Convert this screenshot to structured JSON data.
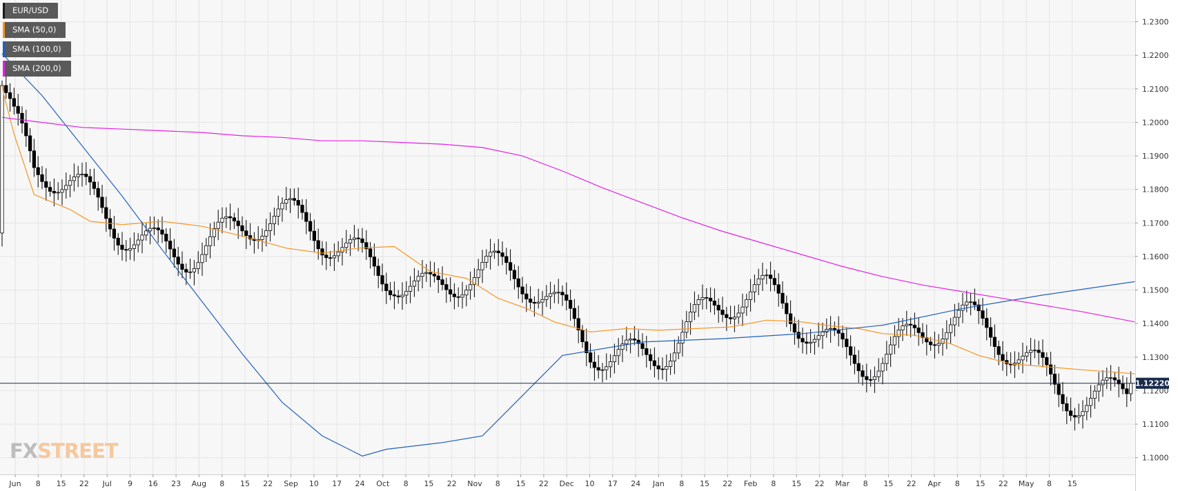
{
  "legend": [
    {
      "label": "EUR/USD",
      "color": "#1a1a1a"
    },
    {
      "label": "SMA (50,0)",
      "color": "#f7931e"
    },
    {
      "label": "SMA (100,0)",
      "color": "#1f5fbf"
    },
    {
      "label": "SMA (200,0)",
      "color": "#e61ee6"
    }
  ],
  "logo": {
    "part1": "FX",
    "part2": "STREET"
  },
  "price_label": "1.12220",
  "colors": {
    "background": "#f7f7f7",
    "grid": "#e4e4e4",
    "candle_up": "#ffffff",
    "candle_down": "#000000",
    "price_line": "#1a2b4c",
    "price_box": "#1a2b4c"
  },
  "chart_data": {
    "type": "candlestick",
    "ylim": [
      1.095,
      1.2365
    ],
    "y_ticks": [
      "1.2300",
      "1.2200",
      "1.2100",
      "1.2000",
      "1.1900",
      "1.1800",
      "1.1700",
      "1.1600",
      "1.1500",
      "1.1400",
      "1.1300",
      "1.1200",
      "1.1100",
      "1.1000"
    ],
    "x_ticks": [
      "Jun",
      "8",
      "15",
      "22",
      "Jul",
      "9",
      "16",
      "23",
      "Aug",
      "8",
      "15",
      "22",
      "Sep",
      "10",
      "17",
      "24",
      "Oct",
      "8",
      "15",
      "22",
      "Nov",
      "8",
      "15",
      "22",
      "Dec",
      "10",
      "17",
      "24",
      "Jan",
      "8",
      "15",
      "22",
      "Feb",
      "8",
      "15",
      "22",
      "Mar",
      "8",
      "15",
      "22",
      "Apr",
      "8",
      "15",
      "22",
      "May",
      "8",
      "15"
    ],
    "x_tick_months": [
      "Jun",
      "Jul",
      "Aug",
      "Sep",
      "Oct",
      "Nov",
      "Dec",
      "Jan",
      "Feb",
      "Mar",
      "Apr",
      "May"
    ],
    "last_price": 1.1222,
    "series": [
      {
        "name": "SMA (50,0)",
        "color": "#f7931e",
        "x": [
          0,
          0.5,
          3,
          8,
          17,
          22,
          30,
          40,
          50,
          62,
          71,
          80,
          89,
          98,
          107,
          116,
          124,
          131,
          138,
          147,
          156,
          164,
          173,
          182,
          191,
          200,
          207,
          214,
          220,
          228,
          237,
          244,
          252,
          260,
          270,
          278,
          283
        ],
        "y": [
          1.211,
          1.208,
          1.1965,
          1.1785,
          1.174,
          1.1705,
          1.1695,
          1.1705,
          1.169,
          1.1655,
          1.1625,
          1.161,
          1.1625,
          1.163,
          1.1555,
          1.1535,
          1.1475,
          1.1445,
          1.1405,
          1.1375,
          1.1385,
          1.138,
          1.1385,
          1.139,
          1.141,
          1.1405,
          1.1393,
          1.1385,
          1.137,
          1.1365,
          1.134,
          1.1305,
          1.128,
          1.1272,
          1.1262,
          1.1255,
          1.125
        ]
      },
      {
        "name": "SMA (100,0)",
        "color": "#1f5fbf",
        "x": [
          0,
          10,
          20,
          30,
          40,
          50,
          60,
          70,
          80,
          90,
          96,
          110,
          120,
          140,
          160,
          180,
          200,
          220,
          240,
          260,
          283
        ],
        "y": [
          1.2205,
          1.208,
          1.193,
          1.178,
          1.162,
          1.1465,
          1.131,
          1.1165,
          1.1065,
          1.1005,
          1.1025,
          1.1045,
          1.1065,
          1.1305,
          1.1345,
          1.1355,
          1.137,
          1.1395,
          1.1445,
          1.1485,
          1.1525
        ]
      },
      {
        "name": "SMA (200,0)",
        "color": "#e61ee6",
        "x": [
          0,
          10,
          20,
          30,
          40,
          50,
          60,
          70,
          80,
          90,
          100,
          110,
          120,
          130,
          140,
          150,
          160,
          170,
          180,
          190,
          200,
          210,
          220,
          230,
          240,
          250,
          260,
          270,
          283
        ],
        "y": [
          1.2015,
          1.2,
          1.1985,
          1.198,
          1.1975,
          1.197,
          1.196,
          1.1955,
          1.1945,
          1.1945,
          1.194,
          1.1935,
          1.1925,
          1.19,
          1.1855,
          1.1805,
          1.176,
          1.1715,
          1.1675,
          1.164,
          1.1605,
          1.157,
          1.154,
          1.1515,
          1.1495,
          1.1475,
          1.1455,
          1.1435,
          1.1405
        ]
      }
    ]
  }
}
